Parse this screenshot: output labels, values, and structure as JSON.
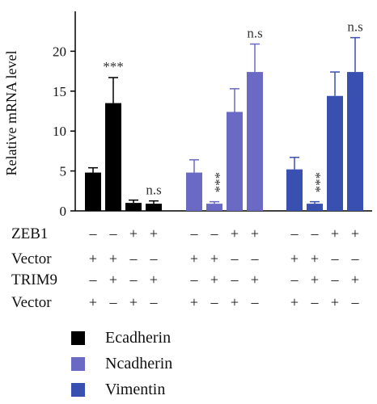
{
  "chart_data": {
    "type": "bar",
    "ylabel": "Relative mRNA level",
    "ylim": [
      0,
      25
    ],
    "yticks": [
      0,
      5,
      10,
      15,
      20
    ],
    "groups": [
      "Ecadherin",
      "Ncadherin",
      "Vimentin"
    ],
    "colors": {
      "Ecadherin": "#000000",
      "Ncadherin": "#6a6ac4",
      "Vimentin": "#3a50b0"
    },
    "series": [
      {
        "name": "Ecadherin",
        "values": [
          4.8,
          13.5,
          1.0,
          0.9
        ],
        "errors": [
          0.6,
          3.2,
          0.35,
          0.35
        ],
        "annotations": [
          "",
          "***",
          "",
          "n.s"
        ]
      },
      {
        "name": "Ncadherin",
        "values": [
          4.8,
          0.9,
          12.4,
          17.4
        ],
        "errors": [
          1.6,
          0.25,
          2.9,
          3.5
        ],
        "annotations": [
          "",
          "***",
          "",
          "n.s"
        ]
      },
      {
        "name": "Vimentin",
        "values": [
          5.2,
          0.9,
          14.4,
          17.4
        ],
        "errors": [
          1.5,
          0.25,
          3.0,
          4.3
        ],
        "annotations": [
          "",
          "***",
          "",
          "n.s"
        ]
      }
    ],
    "conditions": [
      {
        "label": "ZEB1",
        "marks": [
          "–",
          "–",
          "+",
          "+"
        ]
      },
      {
        "label": "Vector",
        "marks": [
          "+",
          "+",
          "–",
          "–"
        ]
      },
      {
        "label": "TRIM9",
        "marks": [
          "–",
          "+",
          "–",
          "+"
        ]
      },
      {
        "label": "Vector",
        "marks": [
          "+",
          "–",
          "+",
          "–"
        ]
      }
    ],
    "legend": [
      "Ecadherin",
      "Ncadherin",
      "Vimentin"
    ]
  }
}
